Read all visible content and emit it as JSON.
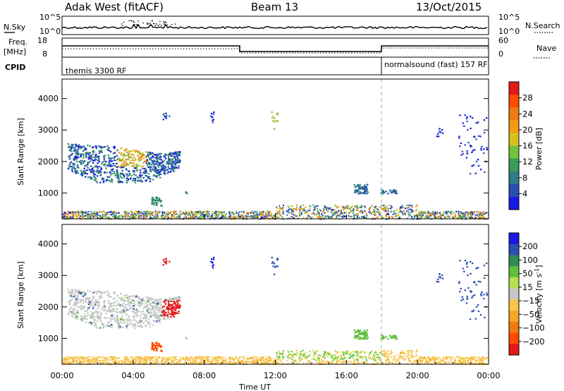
{
  "header": {
    "title": "Adak West (fitACF)",
    "beam": "Beam 13",
    "date": "13/Oct/2015"
  },
  "panels": {
    "xlabel": "Time UT",
    "noise": {
      "left_label": "N.Sky",
      "right_label": "N.Search",
      "ticks": [
        "10^5",
        "10^0"
      ]
    },
    "freq": {
      "left_label": "Freq.",
      "left_unit": "[MHz]",
      "left_ticks": [
        "18",
        "8"
      ],
      "right_label": "Nave",
      "right_ticks": [
        "60",
        "0"
      ]
    },
    "cpid": {
      "label": "CPID",
      "modes": [
        "themis 3300 RF",
        "normalsound (fast) 157 RF"
      ]
    },
    "power": {
      "ylabel": "Slant Range [km]",
      "cbar_label": "Power [dB]"
    },
    "velocity": {
      "ylabel": "Slant Range [km]",
      "cbar_label": "Velocity [m s",
      "cbar_label_exp": "-1",
      "cbar_label_close": "]"
    }
  },
  "chart_data": [
    {
      "type": "heatmap",
      "panel": "power",
      "x_ticks": [
        "00:00",
        "04:00",
        "08:00",
        "12:00",
        "16:00",
        "20:00",
        "00:00"
      ],
      "x_range_hours": [
        0,
        24
      ],
      "y_ticks": [
        1000,
        2000,
        3000,
        4000
      ],
      "y_range_km": [
        180,
        4620
      ],
      "colorbar_ticks": [
        4,
        8,
        12,
        16,
        20,
        24,
        28
      ],
      "colorbar_range": [
        0,
        32
      ],
      "colorbar_colors": [
        "#1a1ae6",
        "#2a4fb3",
        "#2e7d84",
        "#3a9c5a",
        "#74c23b",
        "#d6c11f",
        "#f39c12",
        "#f07a10",
        "#ff4a00",
        "#e21a1a"
      ],
      "features": [
        {
          "desc": "strong echo arc",
          "t": [
            0.3,
            6.9
          ],
          "r": [
            1400,
            2800
          ],
          "peak_db": 20
        },
        {
          "desc": "near-range clutter",
          "t": [
            0,
            24
          ],
          "r": [
            180,
            450
          ],
          "peak_db": 16
        },
        {
          "desc": "patch",
          "t": [
            16.3,
            18.7
          ],
          "r": [
            1000,
            1300
          ],
          "peak_db": 6
        }
      ]
    },
    {
      "type": "heatmap",
      "panel": "velocity",
      "x_ticks": [
        "00:00",
        "04:00",
        "08:00",
        "12:00",
        "16:00",
        "20:00",
        "00:00"
      ],
      "x_range_hours": [
        0,
        24
      ],
      "y_ticks": [
        1000,
        2000,
        3000,
        4000
      ],
      "y_range_km": [
        180,
        4620
      ],
      "colorbar_ticks": [
        200,
        100,
        50,
        15,
        -15,
        -50,
        -100,
        -200
      ],
      "colorbar_range": [
        -250,
        250
      ],
      "colorbar_colors": [
        "#1a1ae6",
        "#2a4fb3",
        "#2e8b57",
        "#5fbf3a",
        "#b4e04f",
        "#c8c8c8",
        "#f7c64a",
        "#f5a623",
        "#f07a10",
        "#ff4a00",
        "#e21a1a"
      ]
    }
  ]
}
